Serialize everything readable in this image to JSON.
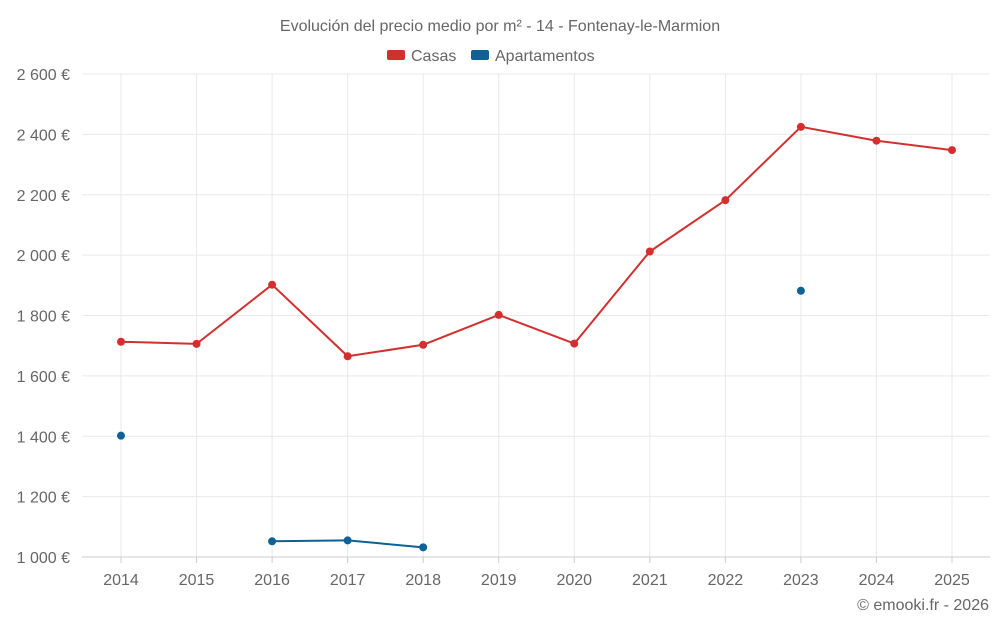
{
  "chart_data": {
    "type": "line",
    "title": "Evolución del precio medio por m² - 14 - Fontenay-le-Marmion",
    "xlabel": "",
    "ylabel": "",
    "categories": [
      "2014",
      "2015",
      "2016",
      "2017",
      "2018",
      "2019",
      "2020",
      "2021",
      "2022",
      "2023",
      "2024",
      "2025"
    ],
    "ylim": [
      1000,
      2600
    ],
    "yticks": [
      1000,
      1200,
      1400,
      1600,
      1800,
      2000,
      2200,
      2400,
      2600
    ],
    "ytick_labels": [
      "1 000 €",
      "1 200 €",
      "1 400 €",
      "1 600 €",
      "1 800 €",
      "2 000 €",
      "2 200 €",
      "2 400 €",
      "2 600 €"
    ],
    "grid": true,
    "legend_position": "top-center",
    "series": [
      {
        "name": "Casas",
        "color": "#d32f2f",
        "values": [
          1713,
          1706,
          1902,
          1665,
          1703,
          1802,
          1707,
          2012,
          2182,
          2425,
          2379,
          2348
        ]
      },
      {
        "name": "Apartamentos",
        "color": "#0d6194",
        "values": [
          1402,
          null,
          1052,
          1055,
          1032,
          null,
          null,
          null,
          null,
          1882,
          null,
          null
        ]
      }
    ]
  },
  "credit": "© emooki.fr - 2026"
}
